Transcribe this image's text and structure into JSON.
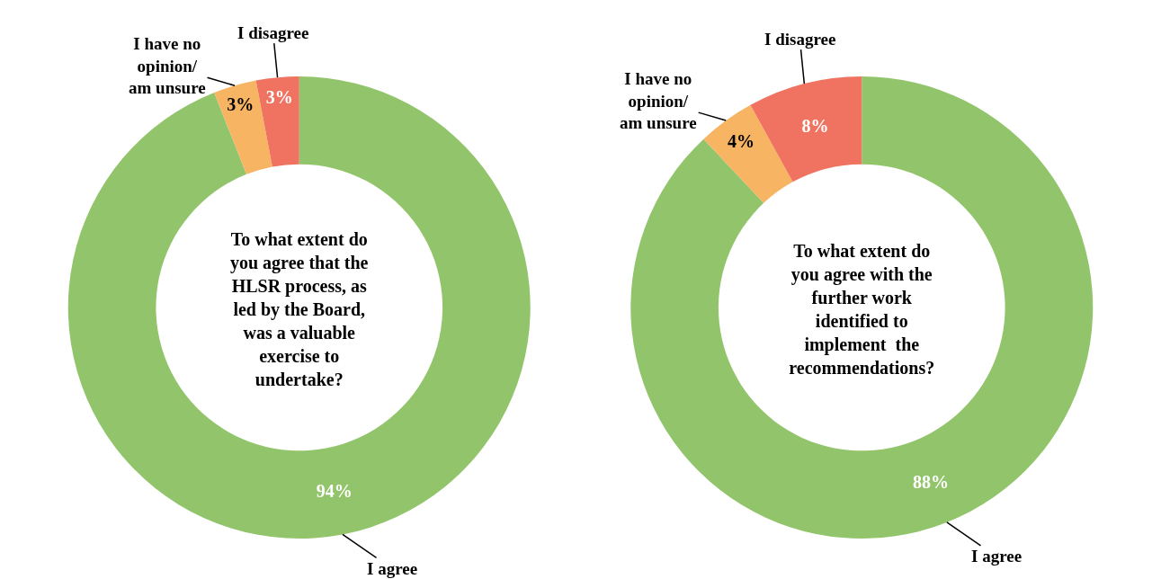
{
  "chart_data": [
    {
      "type": "donut",
      "title": "To what extent do you agree that the HLSR process, as led by the Board, was a valuable exercise to undertake?",
      "categories": [
        "I agree",
        "I have no opinion/ am unsure",
        "I disagree"
      ],
      "values": [
        94,
        3,
        3
      ],
      "value_labels": [
        "94%",
        "3%",
        "3%"
      ],
      "colors": [
        "#92c56b",
        "#f7b462",
        "#ef7360"
      ]
    },
    {
      "type": "donut",
      "title": "To what extent do you agree with the further work identified to implement  the recommendations?",
      "categories": [
        "I agree",
        "I have no opinion/ am unsure",
        "I disagree"
      ],
      "values": [
        88,
        4,
        8
      ],
      "value_labels": [
        "88%",
        "4%",
        "8%"
      ],
      "colors": [
        "#92c56b",
        "#f7b462",
        "#ef7360"
      ]
    }
  ]
}
